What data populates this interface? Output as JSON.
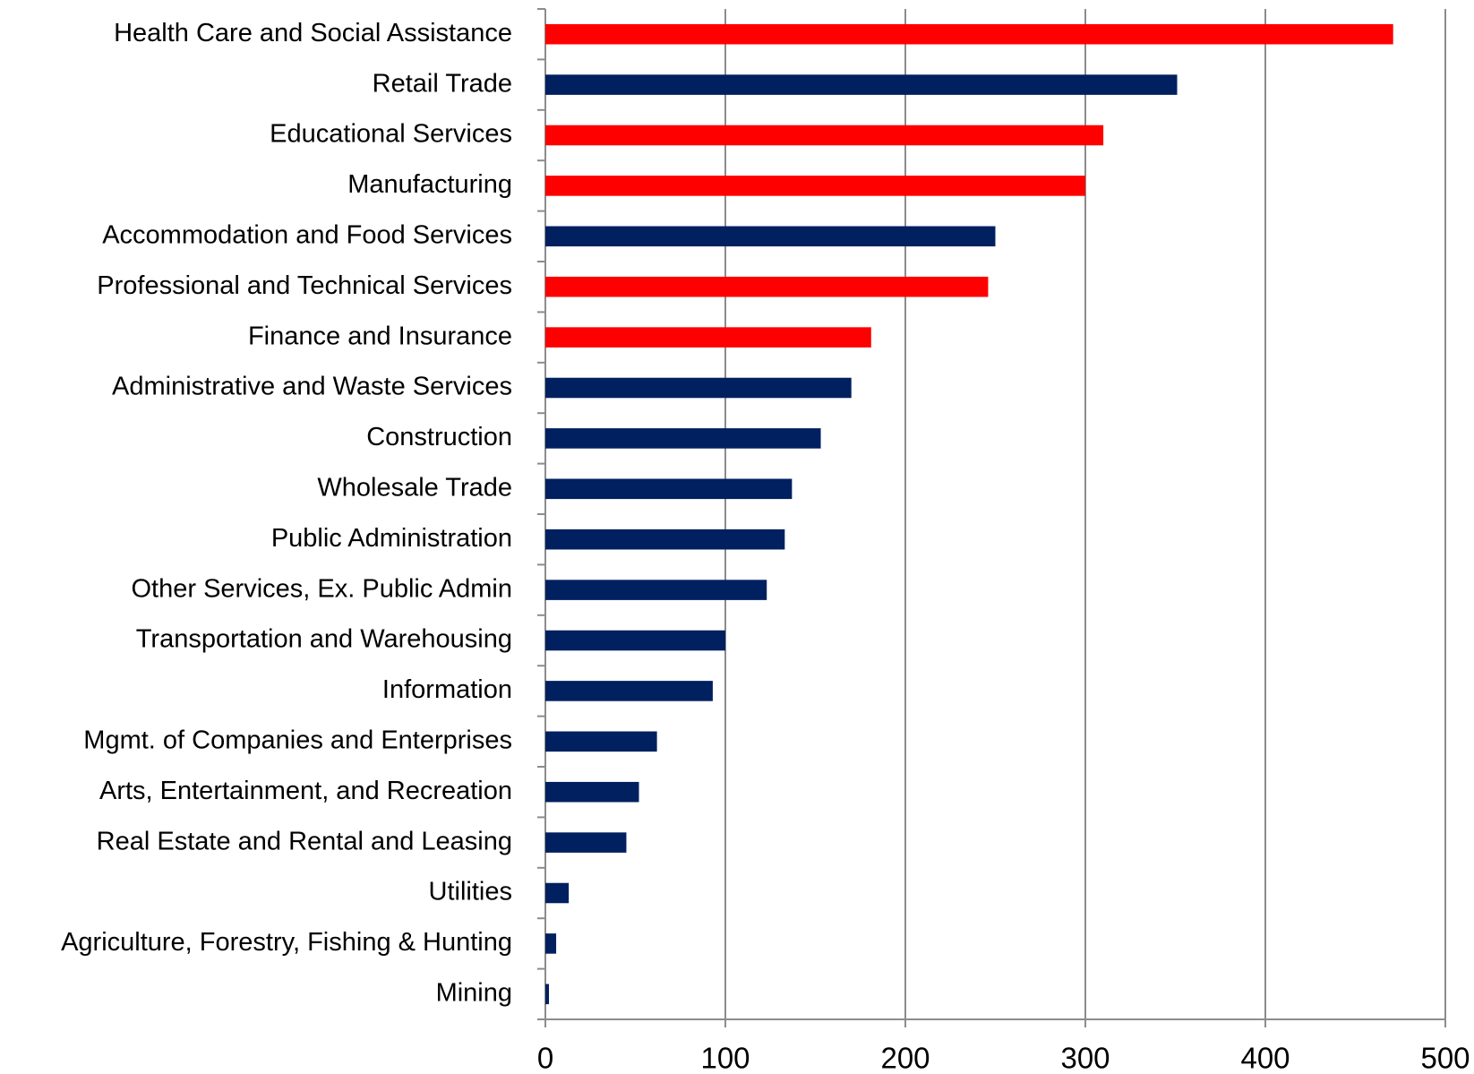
{
  "chart_data": {
    "type": "bar",
    "orientation": "horizontal",
    "categories": [
      "Health Care and Social Assistance",
      "Retail Trade",
      "Educational Services",
      "Manufacturing",
      "Accommodation and Food Services",
      "Professional and Technical Services",
      "Finance and Insurance",
      "Administrative and Waste Services",
      "Construction",
      "Wholesale Trade",
      "Public Administration",
      "Other Services, Ex. Public Admin",
      "Transportation and Warehousing",
      "Information",
      "Mgmt. of Companies and Enterprises",
      "Arts, Entertainment, and Recreation",
      "Real Estate and Rental and Leasing",
      "Utilities",
      "Agriculture, Forestry, Fishing & Hunting",
      "Mining"
    ],
    "values": [
      471,
      351,
      310,
      300,
      250,
      246,
      181,
      170,
      153,
      137,
      133,
      123,
      100,
      93,
      62,
      52,
      45,
      13,
      6,
      2
    ],
    "colors": [
      "#ff0000",
      "#002060",
      "#ff0000",
      "#ff0000",
      "#002060",
      "#ff0000",
      "#ff0000",
      "#002060",
      "#002060",
      "#002060",
      "#002060",
      "#002060",
      "#002060",
      "#002060",
      "#002060",
      "#002060",
      "#002060",
      "#002060",
      "#002060",
      "#002060"
    ],
    "xlim": [
      0,
      500
    ],
    "xticks": [
      0,
      100,
      200,
      300,
      400,
      500
    ],
    "grid": true
  }
}
